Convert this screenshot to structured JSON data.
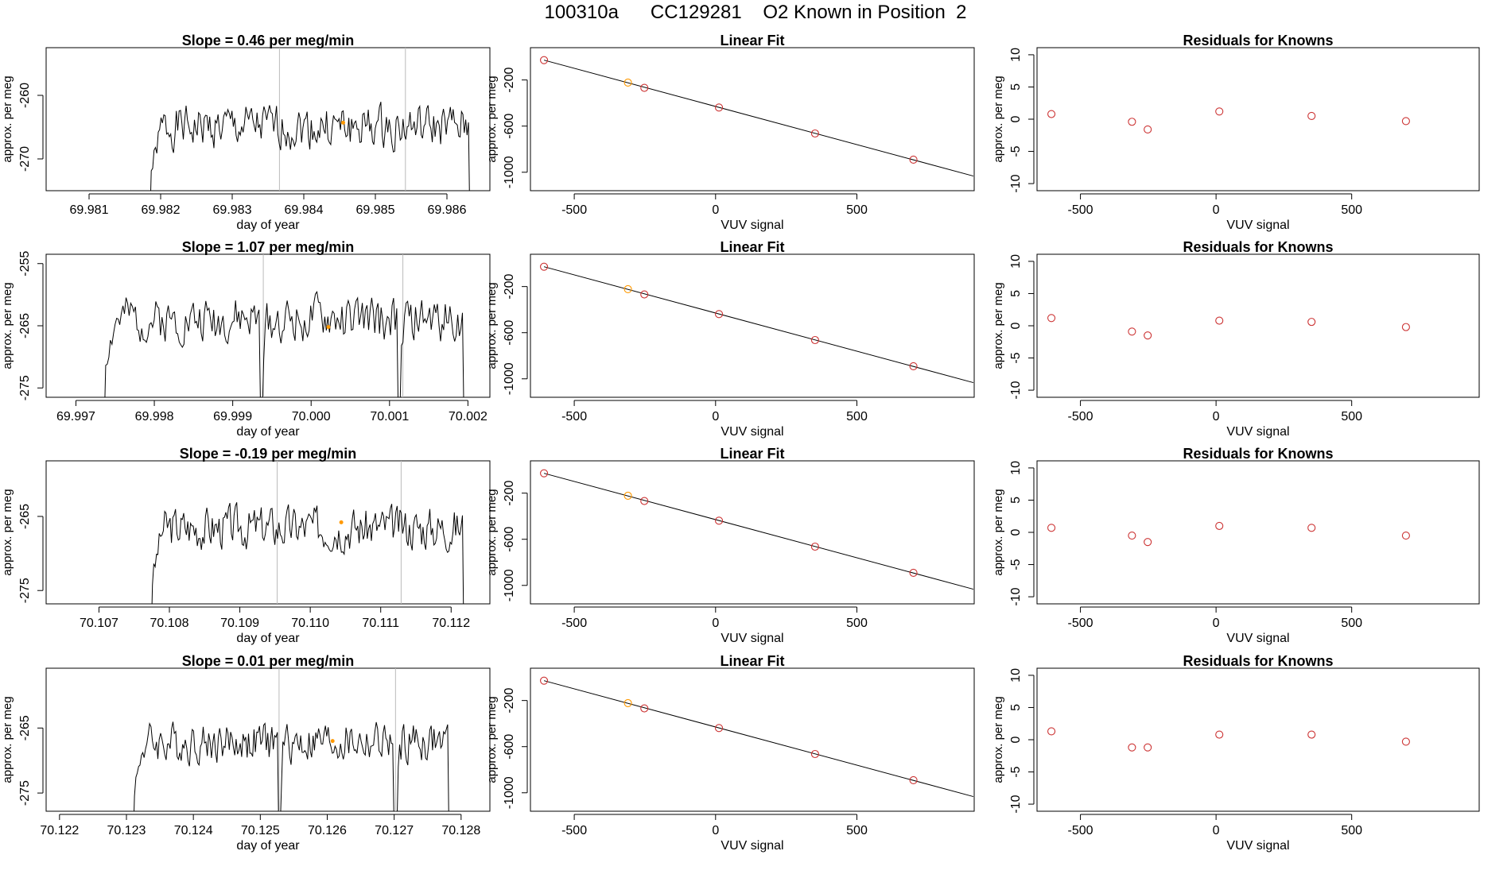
{
  "page": {
    "title": "100310a      CC129281    O2 Known in Position  2"
  },
  "colors": {
    "line": "#000000",
    "orange": "#ff9900",
    "red": "#cc3333",
    "marker_gray": "#bbbbbb"
  },
  "chart_data": [
    {
      "type": "line",
      "panel": "timeseries",
      "row": 0,
      "title": "Slope =  0.46  per meg/min",
      "xlabel": "day of year",
      "ylabel": "approx. per meg",
      "xlim": [
        69.9804,
        69.9866
      ],
      "ylim": [
        -275,
        -252.5
      ],
      "xticks": [
        69.981,
        69.982,
        69.983,
        69.984,
        69.985,
        69.986
      ],
      "xtick_labels": [
        "69.981",
        "69.982",
        "69.983",
        "69.984",
        "69.985",
        "69.986"
      ],
      "yticks": [
        -260,
        -270
      ],
      "ytick_labels": [
        "-260",
        "-270"
      ],
      "vlines": [
        69.98366,
        69.98542
      ],
      "trace_start": 69.98185,
      "trace_end": 69.98632,
      "level": -265,
      "noise": 3.0,
      "dip_at": [],
      "seed": 1,
      "orange_point": {
        "x": 69.98455,
        "y": -264.3
      }
    },
    {
      "type": "line",
      "panel": "timeseries",
      "row": 1,
      "title": "Slope =  1.07  per meg/min",
      "xlabel": "day of year",
      "ylabel": "approx. per meg",
      "xlim": [
        69.99662,
        70.00228
      ],
      "ylim": [
        -276.5,
        -253.5
      ],
      "xticks": [
        69.997,
        69.998,
        69.999,
        70.0,
        70.001,
        70.002
      ],
      "xtick_labels": [
        "69.997",
        "69.998",
        "69.999",
        "70.000",
        "70.001",
        "70.002"
      ],
      "yticks": [
        -255,
        -265,
        -275
      ],
      "ytick_labels": [
        "-255",
        "-265",
        "-275"
      ],
      "vlines": [
        69.99939,
        70.00117
      ],
      "trace_start": 69.99736,
      "trace_end": 70.00195,
      "level": -264,
      "noise": 3.2,
      "dip_at": [
        69.99937,
        70.00112
      ],
      "seed": 2,
      "orange_point": {
        "x": 70.00022,
        "y": -265.2
      }
    },
    {
      "type": "line",
      "panel": "timeseries",
      "row": 2,
      "title": "Slope =  -0.19  per meg/min",
      "xlabel": "day of year",
      "ylabel": "approx. per meg",
      "xlim": [
        70.10625,
        70.11255
      ],
      "ylim": [
        -276.8,
        -257.5
      ],
      "xticks": [
        70.107,
        70.108,
        70.109,
        70.11,
        70.111,
        70.112
      ],
      "xtick_labels": [
        "70.107",
        "70.108",
        "70.109",
        "70.110",
        "70.111",
        "70.112"
      ],
      "yticks": [
        -265,
        -275
      ],
      "ytick_labels": [
        "-265",
        "-275"
      ],
      "vlines": [
        70.10953,
        70.11129
      ],
      "trace_start": 70.10774,
      "trace_end": 70.11218,
      "level": -266.5,
      "noise": 2.6,
      "dip_at": [],
      "seed": 3,
      "orange_point": {
        "x": 70.11044,
        "y": -265.8
      }
    },
    {
      "type": "line",
      "panel": "timeseries",
      "row": 3,
      "title": "Slope =  0.01  per meg/min",
      "xlabel": "day of year",
      "ylabel": "approx. per meg",
      "xlim": [
        70.1218,
        70.12843
      ],
      "ylim": [
        -277.8,
        -255.8
      ],
      "xticks": [
        70.122,
        70.123,
        70.124,
        70.125,
        70.126,
        70.127,
        70.128
      ],
      "xtick_labels": [
        "70.122",
        "70.123",
        "70.124",
        "70.125",
        "70.126",
        "70.127",
        "70.128"
      ],
      "yticks": [
        -265,
        -275
      ],
      "ytick_labels": [
        "-265",
        "-275"
      ],
      "vlines": [
        70.12528,
        70.12702
      ],
      "trace_start": 70.1231,
      "trace_end": 70.12782,
      "level": -267.2,
      "noise": 2.8,
      "dip_at": [
        70.12529,
        70.12702
      ],
      "seed": 4,
      "orange_point": {
        "x": 70.12608,
        "y": -267.0
      }
    },
    {
      "type": "scatter",
      "panel": "fit",
      "row": 0,
      "title": "Linear Fit",
      "xlabel": "VUV signal",
      "ylabel": "approx. per meg",
      "xlim": [
        -655,
        915
      ],
      "ylim": [
        -1160,
        80
      ],
      "xticks": [
        -500,
        0,
        500
      ],
      "xtick_labels": [
        "-500",
        "0",
        "500"
      ],
      "yticks": [
        -200,
        -600,
        -1000
      ],
      "ytick_labels": [
        "-200",
        "-600",
        "-1000"
      ],
      "points": [
        [
          -607,
          -28
        ],
        [
          -310,
          -223
        ],
        [
          -252,
          -268
        ],
        [
          12,
          -439
        ],
        [
          352,
          -664
        ],
        [
          700,
          -891
        ]
      ],
      "highlight_index": 1,
      "fit_line": [
        [
          -607,
          -28
        ],
        [
          912,
          -1033
        ]
      ]
    },
    {
      "type": "scatter",
      "panel": "fit",
      "row": 1,
      "title": "Linear Fit",
      "xlabel": "VUV signal",
      "ylabel": "approx. per meg",
      "xlim": [
        -655,
        915
      ],
      "ylim": [
        -1160,
        80
      ],
      "xticks": [
        -500,
        0,
        500
      ],
      "xtick_labels": [
        "-500",
        "0",
        "500"
      ],
      "yticks": [
        -200,
        -600,
        -1000
      ],
      "ytick_labels": [
        "-200",
        "-600",
        "-1000"
      ],
      "points": [
        [
          -607,
          -28
        ],
        [
          -310,
          -223
        ],
        [
          -252,
          -268
        ],
        [
          12,
          -439
        ],
        [
          352,
          -664
        ],
        [
          700,
          -891
        ]
      ],
      "highlight_index": 1,
      "fit_line": [
        [
          -607,
          -28
        ],
        [
          912,
          -1033
        ]
      ]
    },
    {
      "type": "scatter",
      "panel": "fit",
      "row": 2,
      "title": "Linear Fit",
      "xlabel": "VUV signal",
      "ylabel": "approx. per meg",
      "xlim": [
        -655,
        915
      ],
      "ylim": [
        -1160,
        80
      ],
      "xticks": [
        -500,
        0,
        500
      ],
      "xtick_labels": [
        "-500",
        "0",
        "500"
      ],
      "yticks": [
        -200,
        -600,
        -1000
      ],
      "ytick_labels": [
        "-200",
        "-600",
        "-1000"
      ],
      "points": [
        [
          -607,
          -28
        ],
        [
          -310,
          -223
        ],
        [
          -252,
          -268
        ],
        [
          12,
          -439
        ],
        [
          352,
          -664
        ],
        [
          700,
          -891
        ]
      ],
      "highlight_index": 1,
      "fit_line": [
        [
          -607,
          -28
        ],
        [
          912,
          -1033
        ]
      ]
    },
    {
      "type": "scatter",
      "panel": "fit",
      "row": 3,
      "title": "Linear Fit",
      "xlabel": "VUV signal",
      "ylabel": "approx. per meg",
      "xlim": [
        -655,
        915
      ],
      "ylim": [
        -1160,
        80
      ],
      "xticks": [
        -500,
        0,
        500
      ],
      "xtick_labels": [
        "-500",
        "0",
        "500"
      ],
      "yticks": [
        -200,
        -600,
        -1000
      ],
      "ytick_labels": [
        "-200",
        "-600",
        "-1000"
      ],
      "points": [
        [
          -607,
          -28
        ],
        [
          -310,
          -223
        ],
        [
          -252,
          -268
        ],
        [
          12,
          -439
        ],
        [
          352,
          -664
        ],
        [
          700,
          -891
        ]
      ],
      "highlight_index": 1,
      "fit_line": [
        [
          -607,
          -28
        ],
        [
          912,
          -1033
        ]
      ]
    },
    {
      "type": "scatter",
      "panel": "residuals",
      "row": 0,
      "title": "Residuals for Knowns",
      "xlabel": "VUV signal",
      "ylabel": "approx. per meg",
      "xlim": [
        -660,
        970
      ],
      "ylim": [
        -11.1,
        11.1
      ],
      "xticks": [
        -500,
        0,
        500
      ],
      "xtick_labels": [
        "-500",
        "0",
        "500"
      ],
      "yticks": [
        10,
        5,
        0,
        -5,
        -10
      ],
      "ytick_labels": [
        "10",
        "5",
        "0",
        "-5",
        "-10"
      ],
      "points": [
        [
          -607,
          0.8
        ],
        [
          -310,
          -0.4
        ],
        [
          -252,
          -1.6
        ],
        [
          12,
          1.2
        ],
        [
          352,
          0.5
        ],
        [
          700,
          -0.3
        ]
      ]
    },
    {
      "type": "scatter",
      "panel": "residuals",
      "row": 1,
      "title": "Residuals for Knowns",
      "xlabel": "VUV signal",
      "ylabel": "approx. per meg",
      "xlim": [
        -660,
        970
      ],
      "ylim": [
        -11.1,
        11.1
      ],
      "xticks": [
        -500,
        0,
        500
      ],
      "xtick_labels": [
        "-500",
        "0",
        "500"
      ],
      "yticks": [
        10,
        5,
        0,
        -5,
        -10
      ],
      "ytick_labels": [
        "10",
        "5",
        "0",
        "-5",
        "-10"
      ],
      "points": [
        [
          -607,
          1.2
        ],
        [
          -310,
          -0.9
        ],
        [
          -252,
          -1.5
        ],
        [
          12,
          0.8
        ],
        [
          352,
          0.6
        ],
        [
          700,
          -0.2
        ]
      ]
    },
    {
      "type": "scatter",
      "panel": "residuals",
      "row": 2,
      "title": "Residuals for Knowns",
      "xlabel": "VUV signal",
      "ylabel": "approx. per meg",
      "xlim": [
        -660,
        970
      ],
      "ylim": [
        -11.1,
        11.1
      ],
      "xticks": [
        -500,
        0,
        500
      ],
      "xtick_labels": [
        "-500",
        "0",
        "500"
      ],
      "yticks": [
        10,
        5,
        0,
        -5,
        -10
      ],
      "ytick_labels": [
        "10",
        "5",
        "0",
        "-5",
        "-10"
      ],
      "points": [
        [
          -607,
          0.7
        ],
        [
          -310,
          -0.5
        ],
        [
          -252,
          -1.5
        ],
        [
          12,
          1.0
        ],
        [
          352,
          0.7
        ],
        [
          700,
          -0.5
        ]
      ]
    },
    {
      "type": "scatter",
      "panel": "residuals",
      "row": 3,
      "title": "Residuals for Knowns",
      "xlabel": "VUV signal",
      "ylabel": "approx. per meg",
      "xlim": [
        -660,
        970
      ],
      "ylim": [
        -11.1,
        11.1
      ],
      "xticks": [
        -500,
        0,
        500
      ],
      "xtick_labels": [
        "-500",
        "0",
        "500"
      ],
      "yticks": [
        10,
        5,
        0,
        -5,
        -10
      ],
      "ytick_labels": [
        "10",
        "5",
        "0",
        "-5",
        "-10"
      ],
      "points": [
        [
          -607,
          1.3
        ],
        [
          -310,
          -1.2
        ],
        [
          -252,
          -1.2
        ],
        [
          12,
          0.8
        ],
        [
          352,
          0.8
        ],
        [
          700,
          -0.3
        ]
      ]
    }
  ]
}
